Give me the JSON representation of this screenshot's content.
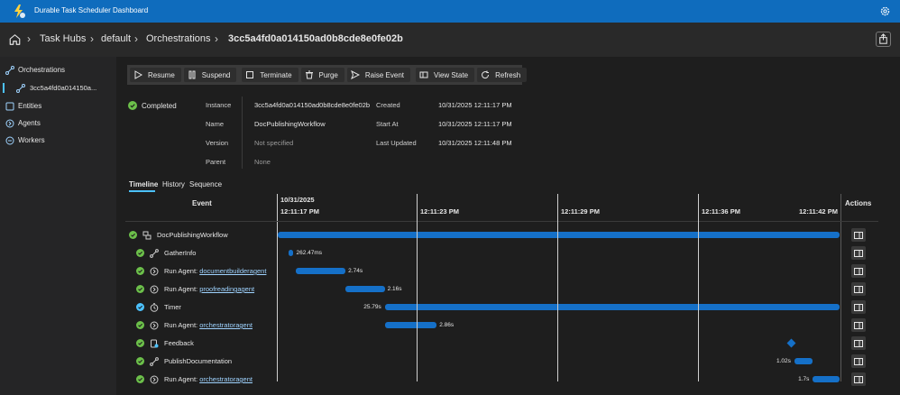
{
  "app": {
    "title": "Durable Task Scheduler Dashboard"
  },
  "breadcrumb": [
    "Task Hubs",
    "default",
    "Orchestrations",
    "3cc5a4fd0a014150ad0b8cde8e0fe02b"
  ],
  "sidebar": {
    "items": [
      {
        "label": "Orchestrations",
        "icon": "orchestration-icon"
      },
      {
        "label": "3cc5a4fd0a014150a...",
        "icon": "orchestration-icon",
        "sub": true,
        "active": true
      },
      {
        "label": "Entities",
        "icon": "entity-icon"
      },
      {
        "label": "Agents",
        "icon": "agent-icon"
      },
      {
        "label": "Workers",
        "icon": "worker-icon"
      }
    ]
  },
  "toolbar": {
    "resume": "Resume",
    "suspend": "Suspend",
    "terminate": "Terminate",
    "purge": "Purge",
    "raise_event": "Raise Event",
    "view_state": "View State",
    "refresh": "Refresh"
  },
  "details": {
    "status": "Completed",
    "instance_label": "Instance",
    "instance": "3cc5a4fd0a014150ad0b8cde8e0fe02b",
    "name_label": "Name",
    "name": "DocPublishingWorkflow",
    "version_label": "Version",
    "version": "Not specified",
    "parent_label": "Parent",
    "parent": "None",
    "created_label": "Created",
    "created": "10/31/2025 12:11:17 PM",
    "start_label": "Start At",
    "start": "10/31/2025 12:11:17 PM",
    "updated_label": "Last Updated",
    "updated": "10/31/2025 12:11:48 PM"
  },
  "tabs": [
    "Timeline",
    "History",
    "Sequence"
  ],
  "timeline": {
    "event_header": "Event",
    "actions_header": "Actions",
    "date": "10/31/2025",
    "ticks": [
      "12:11:17 PM",
      "12:11:23 PM",
      "12:11:29 PM",
      "12:11:36 PM",
      "12:11:42 PM"
    ],
    "colors": {
      "bar": "#1570c8",
      "ok": "#6cc04a",
      "timer": "#4cc2ff"
    },
    "rows": [
      {
        "prefix": "",
        "name": "DocPublishingWorkflow",
        "link": false,
        "icon": "orchestration-icon",
        "status": "ok",
        "start": 0.0,
        "end": 31.0,
        "duration": ""
      },
      {
        "prefix": "",
        "name": "GatherInfo",
        "link": false,
        "icon": "activity-icon",
        "status": "ok",
        "start": 0.6,
        "end": 0.87,
        "duration": "262.47ms"
      },
      {
        "prefix": "Run Agent: ",
        "name": "documentbuilderagent",
        "link": true,
        "icon": "agent-icon",
        "status": "ok",
        "start": 1.0,
        "end": 3.74,
        "duration": "2.74s"
      },
      {
        "prefix": "Run Agent: ",
        "name": "proofreadingagent",
        "link": true,
        "icon": "agent-icon",
        "status": "ok",
        "start": 3.74,
        "end": 5.9,
        "duration": "2.16s"
      },
      {
        "prefix": "",
        "name": "Timer",
        "link": false,
        "icon": "timer-icon",
        "status": "timer",
        "start": 5.91,
        "end": 31.7,
        "duration": "25.79s"
      },
      {
        "prefix": "Run Agent: ",
        "name": "orchestratoragent",
        "link": true,
        "icon": "agent-icon",
        "status": "ok",
        "start": 5.91,
        "end": 8.77,
        "duration": "2.86s"
      },
      {
        "prefix": "",
        "name": "Feedback",
        "link": false,
        "icon": "event-icon",
        "status": "ok",
        "point": 28.3,
        "duration": ""
      },
      {
        "prefix": "",
        "name": "PublishDocumentation",
        "link": false,
        "icon": "activity-icon",
        "status": "ok",
        "start": 28.5,
        "end": 29.52,
        "duration": "1.02s"
      },
      {
        "prefix": "Run Agent: ",
        "name": "orchestratoragent",
        "link": true,
        "icon": "agent-icon",
        "status": "ok",
        "start": 29.52,
        "end": 31.22,
        "duration": "1.7s"
      }
    ]
  }
}
